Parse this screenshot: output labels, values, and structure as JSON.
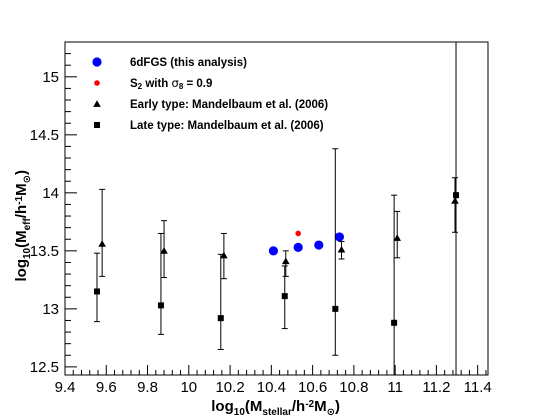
{
  "chart_data": {
    "type": "scatter",
    "xlim": [
      9.4,
      11.45
    ],
    "ylim": [
      12.43,
      15.3
    ],
    "x_ticks": [
      9.4,
      9.6,
      9.8,
      10,
      10.2,
      10.4,
      10.6,
      10.8,
      11,
      11.2,
      11.4
    ],
    "x_tick_labels": [
      "9.4",
      "9.6",
      "9.8",
      "10",
      "10.2",
      "10.4",
      "10.6",
      "10.8",
      "11",
      "11.2",
      "11.4"
    ],
    "y_ticks": [
      12.5,
      13,
      13.5,
      14,
      14.5,
      15
    ],
    "y_tick_labels": [
      "12.5",
      "13",
      "13.5",
      "14",
      "14.5",
      "15"
    ],
    "xlabel": {
      "base": "log",
      "sub1": "10",
      "mid": "(M",
      "sub2": "stellar",
      "mid2": "/h",
      "sup": "-2",
      "end": "M",
      "sub3": "⊙",
      "close": ")"
    },
    "ylabel": {
      "base": "log",
      "sub1": "10",
      "mid": "(M",
      "sub2": "eff",
      "mid2": "/h",
      "sup": "-1",
      "end": "M",
      "sub3": "⊙",
      "close": ")"
    },
    "legend_position": "top-left",
    "series": [
      {
        "name": "6dFGS (this analysis)",
        "marker": "circle-large",
        "color": "#0000ff",
        "points": [
          {
            "x": 10.41,
            "y": 13.5
          },
          {
            "x": 10.53,
            "y": 13.53
          },
          {
            "x": 10.63,
            "y": 13.55
          },
          {
            "x": 10.73,
            "y": 13.62
          }
        ]
      },
      {
        "name": "S",
        "name_sub": "2",
        "name_rest": " with σ",
        "name_sub2": "8",
        "name_end": " = 0.9",
        "marker": "circle-small",
        "color": "#ff0000",
        "points": [
          {
            "x": 10.53,
            "y": 13.65
          }
        ]
      },
      {
        "name": "Early type: Mandelbaum et al. (2006)",
        "marker": "triangle",
        "color": "#000000",
        "points": [
          {
            "x": 9.58,
            "y": 13.56,
            "ylo": 13.28,
            "yhi": 14.03
          },
          {
            "x": 9.88,
            "y": 13.5,
            "ylo": 13.27,
            "yhi": 13.76
          },
          {
            "x": 10.17,
            "y": 13.46,
            "ylo": 13.26,
            "yhi": 13.65
          },
          {
            "x": 10.47,
            "y": 13.41,
            "ylo": 13.28,
            "yhi": 13.5
          },
          {
            "x": 10.74,
            "y": 13.51,
            "ylo": 13.43,
            "yhi": 13.58
          },
          {
            "x": 11.01,
            "y": 13.61,
            "ylo": 13.44,
            "yhi": 13.84
          },
          {
            "x": 11.29,
            "y": 13.93,
            "ylo": 13.66,
            "yhi": 14.13
          }
        ]
      },
      {
        "name": "Late type: Mandelbaum et al. (2006)",
        "marker": "square",
        "color": "#000000",
        "points": [
          {
            "x": 9.555,
            "y": 13.15,
            "ylo": 12.89,
            "yhi": 13.48
          },
          {
            "x": 9.865,
            "y": 13.03,
            "ylo": 12.78,
            "yhi": 13.65
          },
          {
            "x": 10.155,
            "y": 12.92,
            "ylo": 12.65,
            "yhi": 13.47
          },
          {
            "x": 10.465,
            "y": 13.11,
            "ylo": 12.83,
            "yhi": 13.37
          },
          {
            "x": 10.71,
            "y": 13.0,
            "ylo": 12.6,
            "yhi": 14.38
          },
          {
            "x": 10.995,
            "y": 12.88,
            "ylo": 12.43,
            "yhi": 13.98
          },
          {
            "x": 11.295,
            "y": 13.98,
            "ylo": 12.43,
            "yhi": 15.3
          }
        ]
      }
    ]
  }
}
